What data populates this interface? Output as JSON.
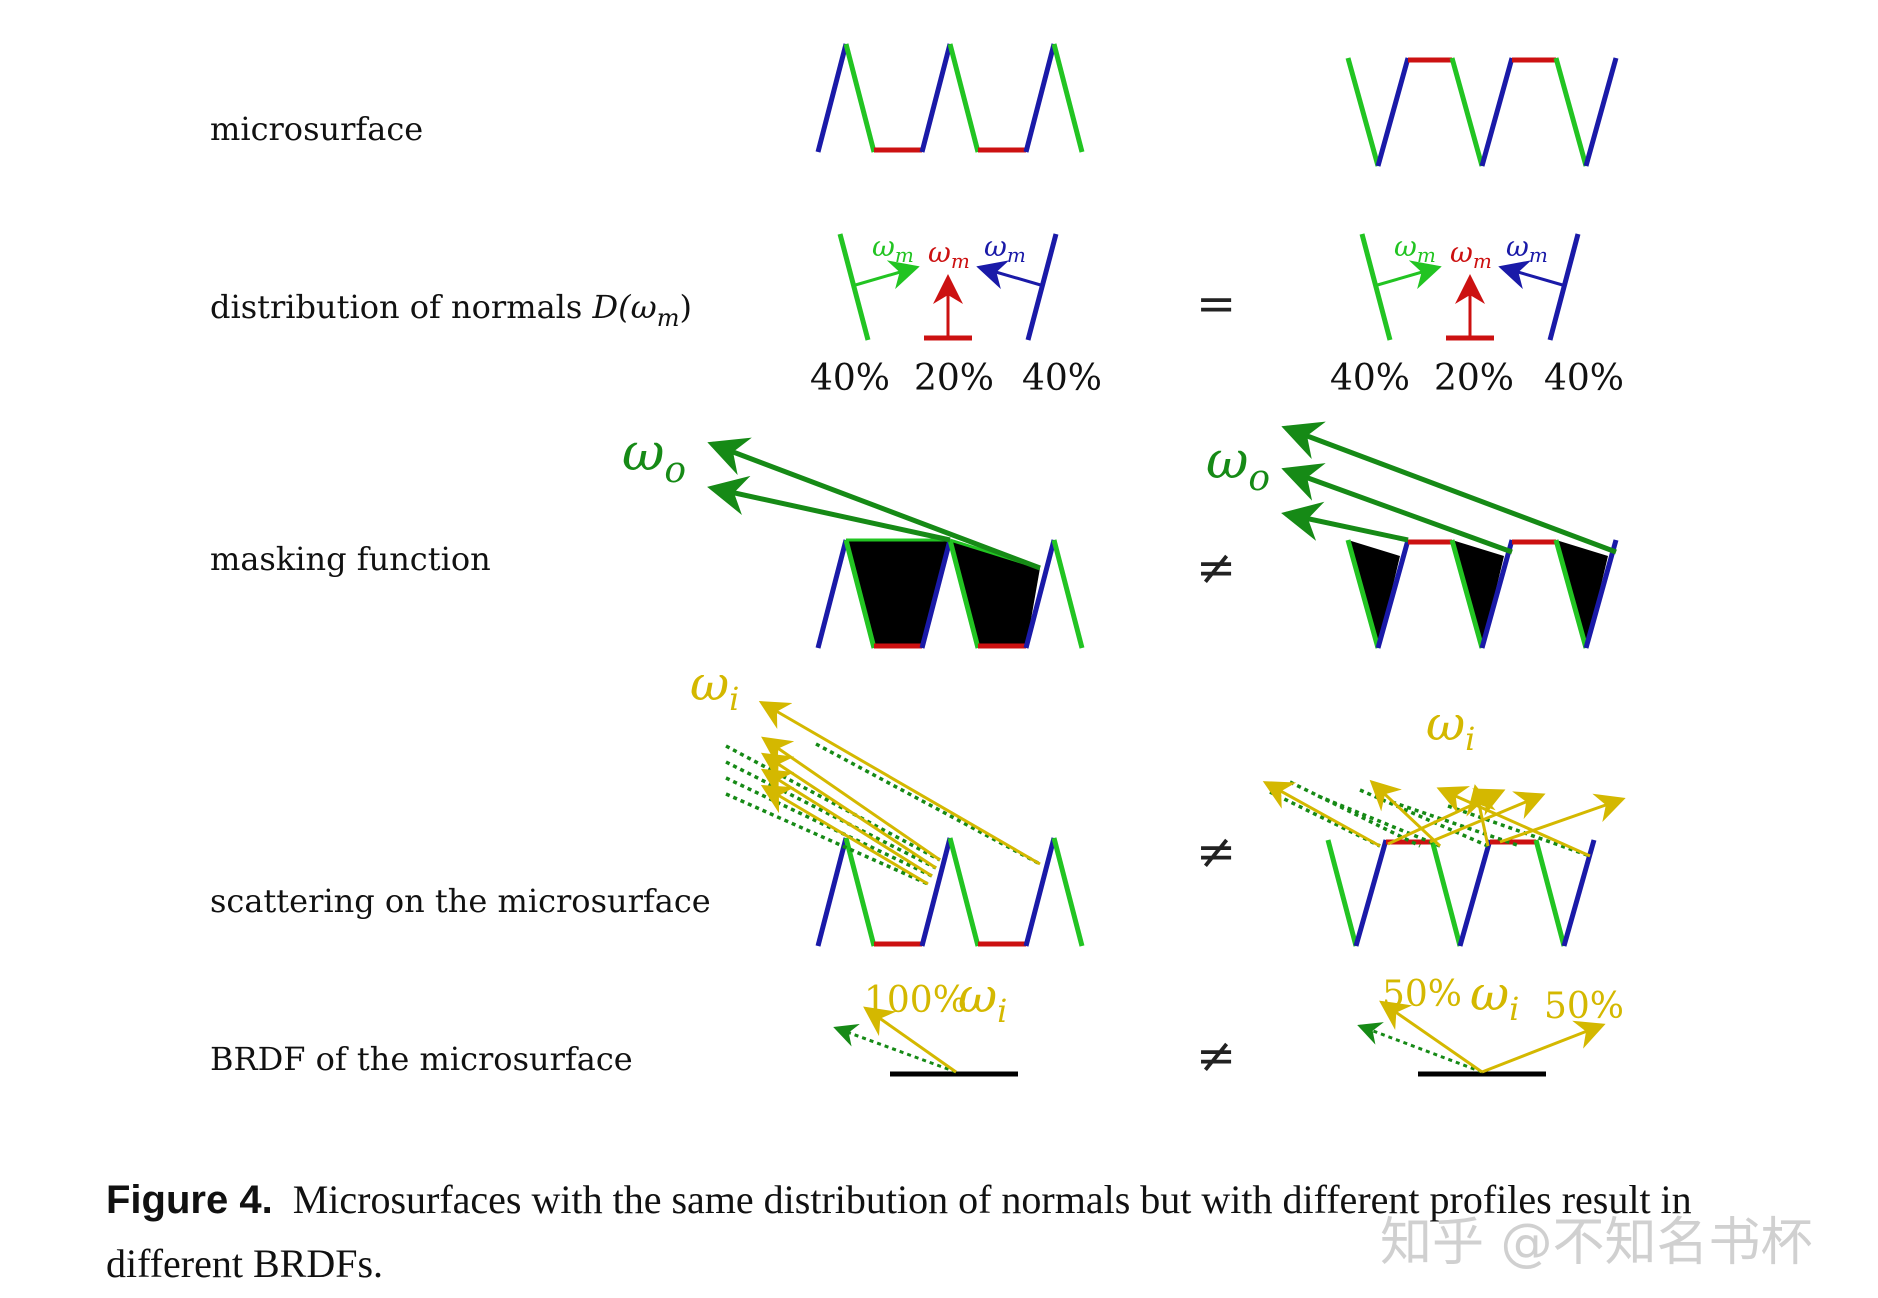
{
  "rows": {
    "microsurface": "microsurface",
    "distribution": "distribution of normals",
    "distribution_math": "D(ω",
    "distribution_math_sub": "m",
    "distribution_math_end": ")",
    "masking": "masking function",
    "scattering": "scattering on the microsurface",
    "brdf": "BRDF of the microsurface"
  },
  "normals": {
    "symbol": "ω",
    "sub": "m",
    "left_pct": "40%",
    "mid_pct": "20%",
    "right_pct": "40%"
  },
  "relations": {
    "distribution": "=",
    "masking": "≠",
    "scattering": "≠",
    "brdf": "≠"
  },
  "labels": {
    "wo": "ω",
    "wo_sub": "o",
    "wi": "ω",
    "wi_sub": "i",
    "brdf_left_pct": "100%",
    "brdf_right_pct_left": "50%",
    "brdf_right_pct_right": "50%"
  },
  "caption": {
    "figure": "Figure 4.",
    "text": "Microsurfaces with the same distribution of normals but with different profiles result in different BRDFs."
  },
  "watermark": "知乎 @不知名书杯",
  "colors": {
    "green": "#22c422",
    "blue": "#1a1aa8",
    "red": "#cc1111",
    "dark_green": "#168a16",
    "yellow": "#d4b800",
    "black": "#000000"
  }
}
